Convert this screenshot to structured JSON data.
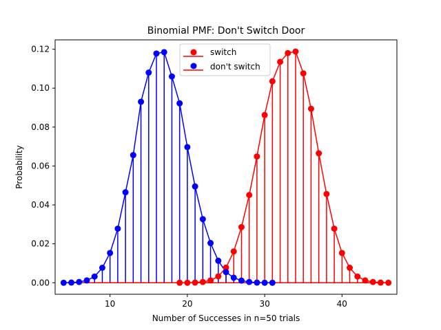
{
  "chart_data": {
    "type": "stem",
    "title": "Binomial PMF: Don't Switch Door",
    "xlabel": "Number of Successes in n=50 trials",
    "ylabel": "Probability",
    "xlim": [
      2.9,
      47.1
    ],
    "ylim": [
      -0.0059,
      0.1248
    ],
    "xticks": [
      10,
      20,
      30,
      40
    ],
    "yticks": [
      0.0,
      0.02,
      0.04,
      0.06,
      0.08,
      0.1,
      0.12
    ],
    "ytick_labels": [
      "0.00",
      "0.02",
      "0.04",
      "0.06",
      "0.08",
      "0.10",
      "0.12"
    ],
    "legend_location": "upper-center",
    "series": [
      {
        "name": "switch",
        "color": "#ff0000",
        "x": [
          19,
          20,
          21,
          22,
          23,
          24,
          25,
          26,
          27,
          28,
          29,
          30,
          31,
          32,
          33,
          34,
          35,
          36,
          37,
          38,
          39,
          40,
          41,
          42,
          43,
          44,
          45,
          46
        ],
        "y": [
          0.0,
          0.0,
          0.0001,
          0.0004,
          0.0012,
          0.0033,
          0.0078,
          0.0161,
          0.0286,
          0.0451,
          0.0649,
          0.0862,
          0.1035,
          0.1135,
          0.118,
          0.1188,
          0.1076,
          0.0894,
          0.0665,
          0.0456,
          0.0278,
          0.0153,
          0.0077,
          0.0032,
          0.0012,
          0.0004,
          0.0001,
          0.0
        ]
      },
      {
        "name": "don't switch",
        "color": "#0000ff",
        "x": [
          4,
          5,
          6,
          7,
          8,
          9,
          10,
          11,
          12,
          13,
          14,
          15,
          16,
          17,
          18,
          19,
          20,
          21,
          22,
          23,
          24,
          25,
          26,
          27,
          28,
          29,
          30,
          31
        ],
        "y": [
          0.0,
          0.0001,
          0.0004,
          0.0012,
          0.0032,
          0.0077,
          0.0153,
          0.0278,
          0.0465,
          0.0656,
          0.093,
          0.108,
          0.1178,
          0.1185,
          0.106,
          0.0922,
          0.0697,
          0.0495,
          0.0327,
          0.0204,
          0.0113,
          0.0055,
          0.0026,
          0.0011,
          0.0004,
          0.0001,
          0.0,
          0.0
        ]
      }
    ]
  }
}
